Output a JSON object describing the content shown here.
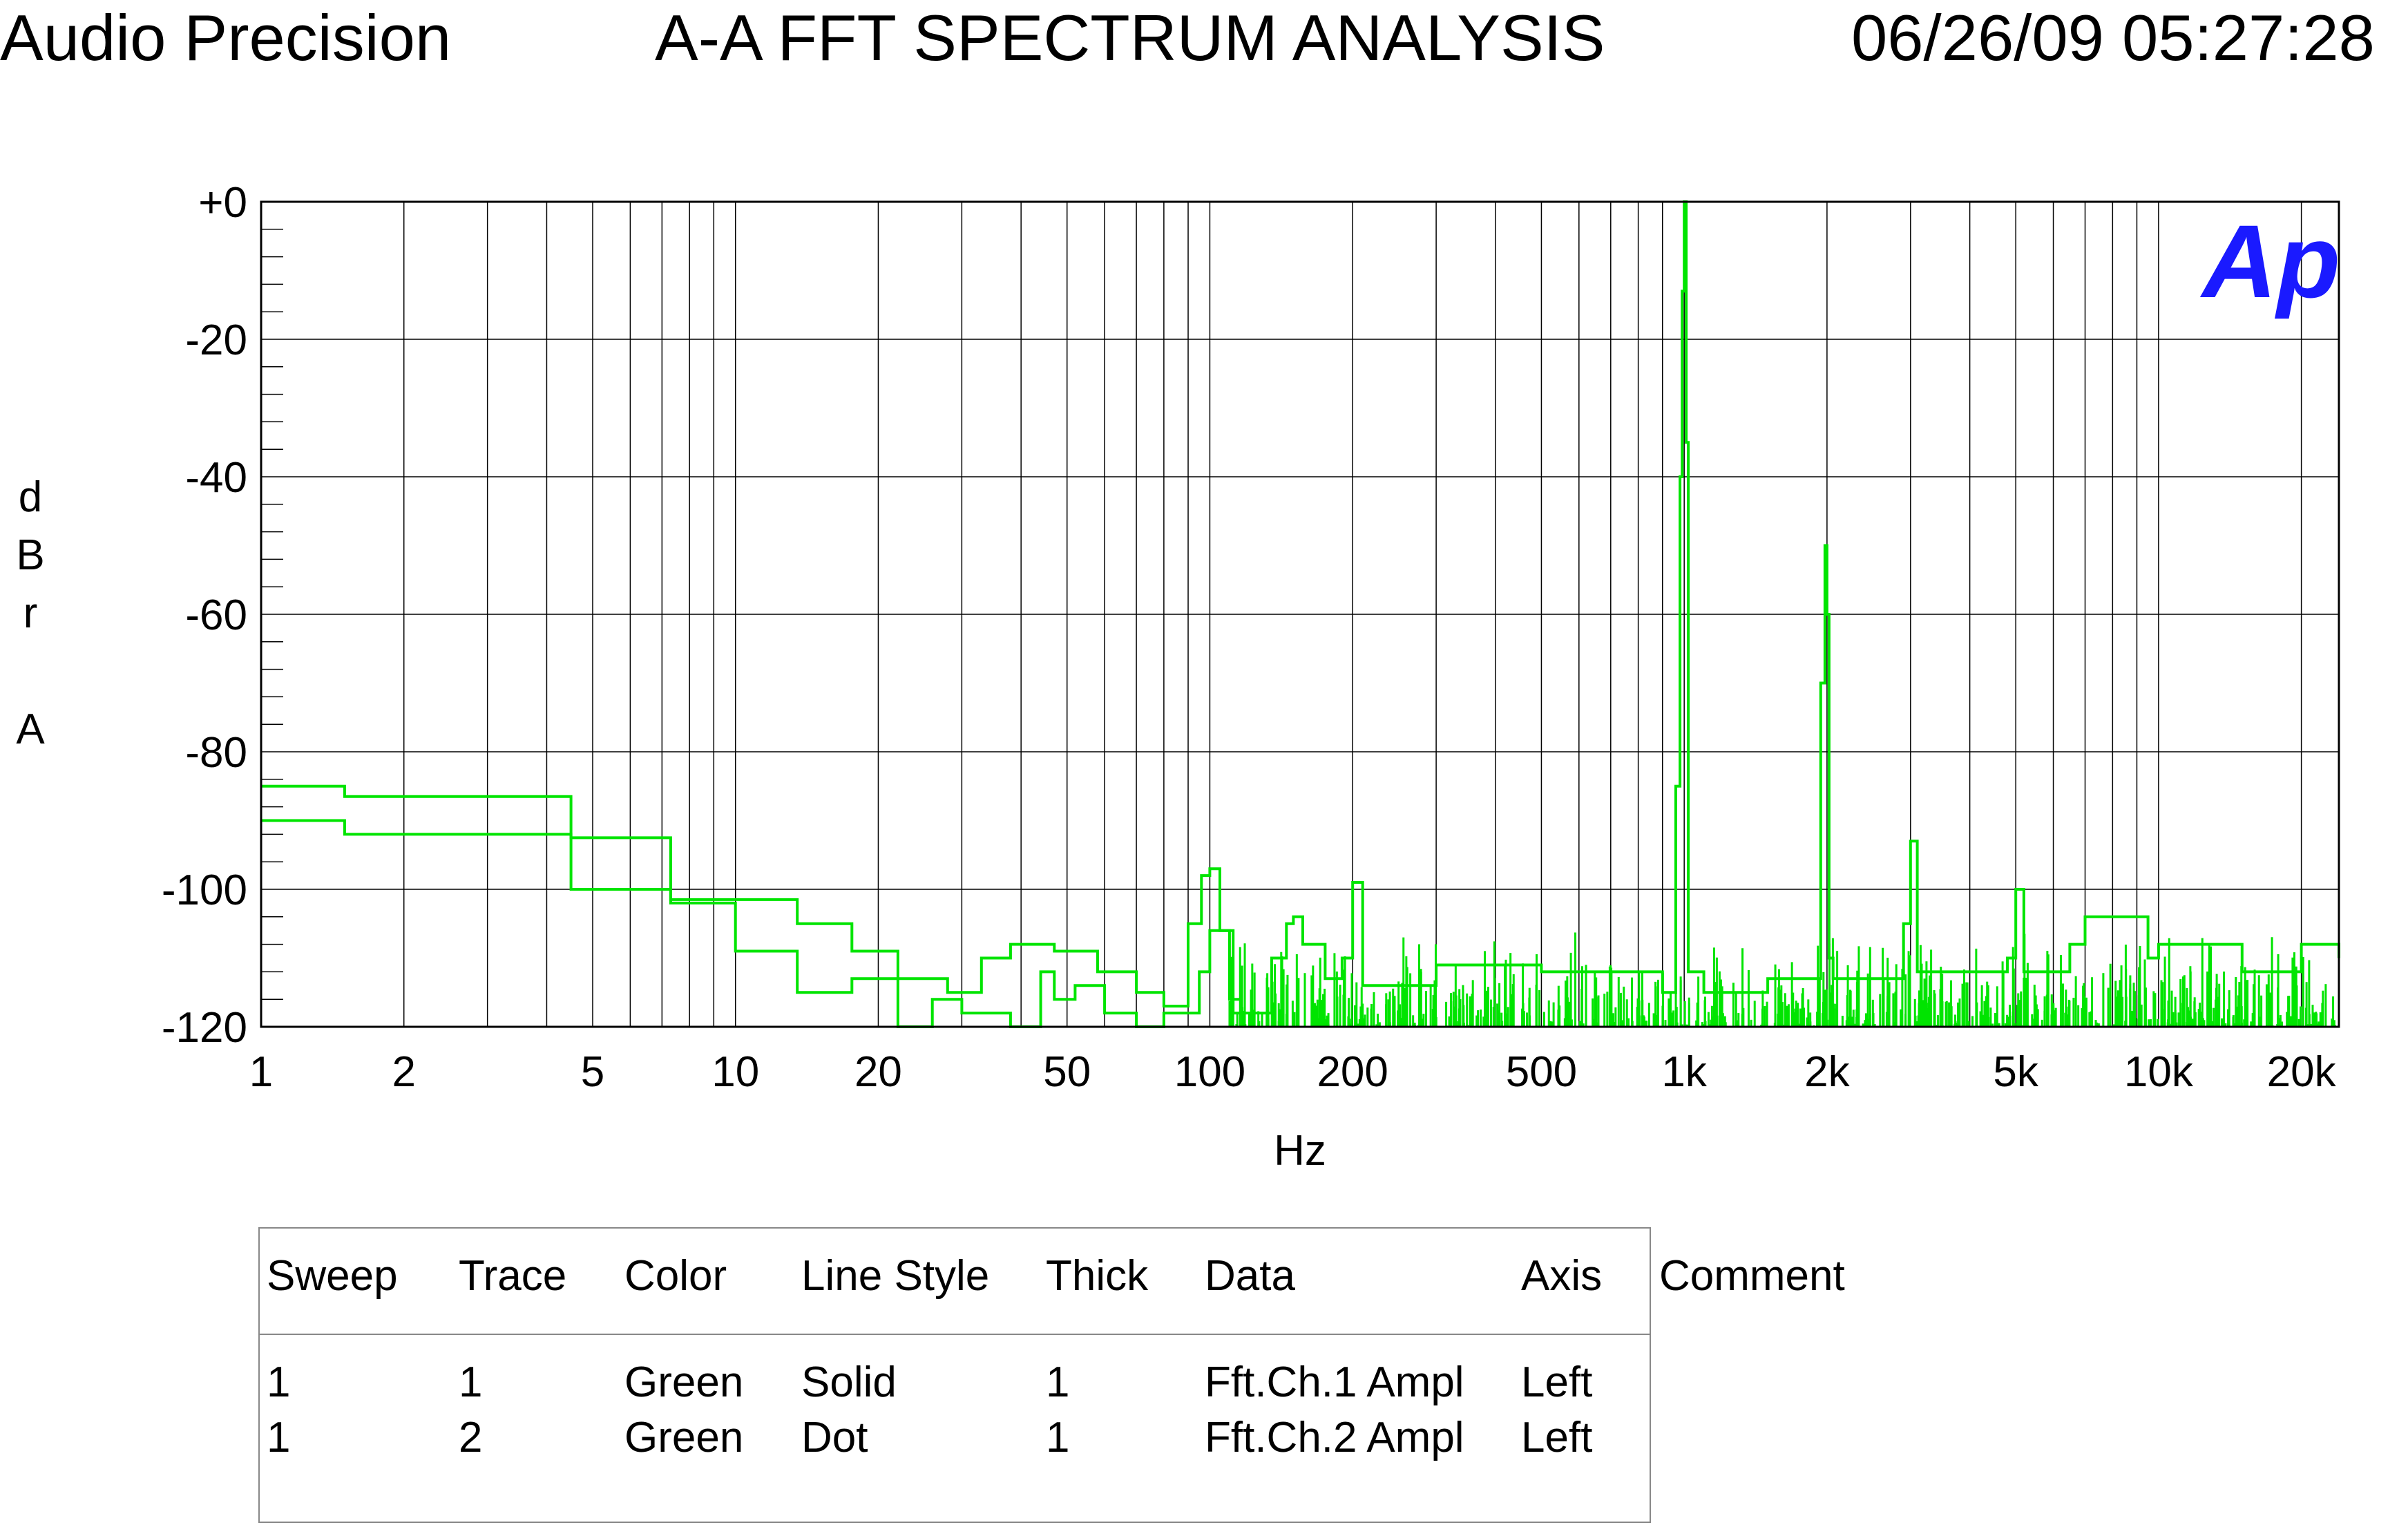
{
  "header": {
    "left": "Audio Precision",
    "center": "A-A FFT SPECTRUM ANALYSIS",
    "right": "06/26/09 05:27:28"
  },
  "logo_text": "Ap",
  "colors": {
    "trace": "#00e400",
    "grid": "#000000",
    "logo": "#1a1aff",
    "border": "#888888"
  },
  "chart_data": {
    "type": "line",
    "title": "A-A FFT SPECTRUM ANALYSIS",
    "xlabel": "Hz",
    "ylabel": "dBr A",
    "x_scale": "log",
    "xlim": [
      1,
      24000
    ],
    "ylim": [
      -120,
      0
    ],
    "grid": true,
    "x_ticks": [
      1,
      2,
      5,
      10,
      20,
      50,
      100,
      200,
      500,
      1000,
      2000,
      5000,
      10000,
      20000
    ],
    "x_tick_labels": [
      "1",
      "2",
      "5",
      "10",
      "20",
      "50",
      "100",
      "200",
      "500",
      "1k",
      "2k",
      "5k",
      "10k",
      "20k"
    ],
    "y_ticks": [
      0,
      -20,
      -40,
      -60,
      -80,
      -100,
      -120
    ],
    "y_tick_labels": [
      "+0",
      "-20",
      "-40",
      "-60",
      "-80",
      "-100",
      "-120"
    ],
    "series": [
      {
        "step": true,
        "x": [
          1,
          1.5,
          4.5,
          7.3,
          13.5,
          17.6,
          22,
          28,
          33,
          38,
          47,
          58,
          70,
          80,
          90,
          96,
          100,
          105,
          112,
          135,
          145,
          150,
          157,
          175,
          190,
          200,
          210,
          300,
          500,
          900,
          960,
          980,
          990,
          1000,
          1010,
          1020,
          1100,
          1500,
          1940,
          1980,
          2000,
          2020,
          2060,
          2900,
          3000,
          3100,
          4800,
          5000,
          5200,
          6500,
          7000,
          9500,
          10000,
          15000,
          20000,
          24000
        ],
        "y": [
          -85,
          -86.5,
          -92.5,
          -101.5,
          -105,
          -109,
          -113,
          -115,
          -110,
          -108,
          -109,
          -112,
          -115,
          -117,
          -105,
          -98,
          -97,
          -106,
          -118,
          -110,
          -105,
          -104,
          -108,
          -113,
          -110,
          -99,
          -114,
          -111,
          -112,
          -115,
          -85,
          -40,
          -13,
          0,
          -35,
          -112,
          -115,
          -113,
          -70,
          -50,
          -60,
          -110,
          -113,
          -105,
          -93,
          -112,
          -110,
          -100,
          -112,
          -108,
          -104,
          -110,
          -108,
          -112,
          -108,
          -110
        ]
      },
      {
        "step": true,
        "x": [
          1,
          1.5,
          4.5,
          7.3,
          10,
          13.5,
          17.6,
          22,
          26,
          30,
          38,
          44,
          47,
          52,
          60,
          70,
          80,
          95,
          100,
          110
        ],
        "y": [
          -90,
          -92,
          -100,
          -102,
          -109,
          -115,
          -113,
          -120,
          -116,
          -118,
          -120,
          -112,
          -116,
          -114,
          -118,
          -120,
          -118,
          -112,
          -106,
          -116
        ]
      }
    ]
  },
  "legend": {
    "headers": [
      "Sweep",
      "Trace",
      "Color",
      "Line Style",
      "Thick",
      "Data",
      "Axis",
      "Comment"
    ],
    "rows": [
      [
        "1",
        "1",
        "Green",
        "Solid",
        "1",
        "Fft.Ch.1 Ampl",
        "Left",
        ""
      ],
      [
        "1",
        "2",
        "Green",
        "Dot",
        "1",
        "Fft.Ch.2 Ampl",
        "Left",
        ""
      ]
    ]
  }
}
